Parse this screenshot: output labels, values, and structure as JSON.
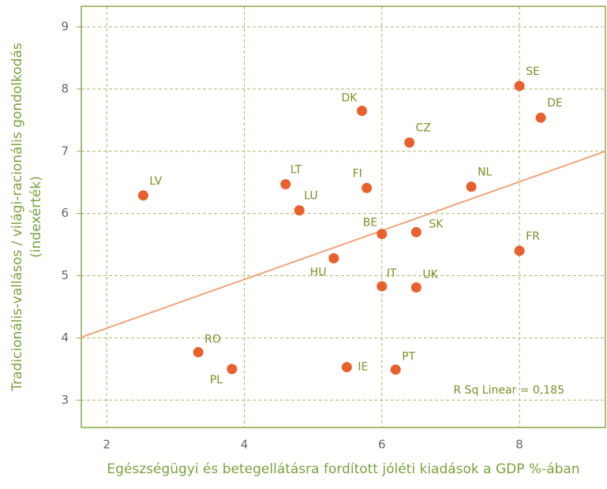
{
  "chart_data": {
    "type": "scatter",
    "xlabel": "Egészségügyi és betegellátásra fordított jóléti kiadások a GDP %-ában",
    "ylabel": [
      "Tradicionális-vallásos / világi-racionális gondolkodás",
      "(indexérték)"
    ],
    "annotation": "R Sq Linear = 0,185",
    "points": [
      "LV",
      "RO",
      "PL",
      "IE",
      "PT",
      "HU",
      "IT",
      "UK",
      "BE",
      "SK",
      "FR",
      "NL",
      "FI",
      "LU",
      "LT",
      "DK",
      "CZ",
      "SE",
      "DE"
    ],
    "x": [
      2.53,
      3.33,
      3.82,
      5.49,
      6.2,
      5.3,
      6.0,
      6.5,
      6.0,
      6.5,
      8.0,
      7.3,
      5.78,
      4.8,
      4.6,
      5.71,
      6.4,
      8.0,
      8.31
    ],
    "y": [
      6.29,
      3.77,
      3.5,
      3.53,
      3.49,
      5.28,
      4.83,
      4.81,
      5.67,
      5.7,
      5.4,
      6.43,
      6.41,
      6.05,
      6.47,
      7.65,
      7.14,
      8.05,
      7.54
    ],
    "color": "#e8602c",
    "fit_line": {
      "x": [
        1.63,
        9.25
      ],
      "y": [
        4.01,
        7.0
      ],
      "color": "#f2a57a"
    },
    "xlim": [
      1.63,
      9.25
    ],
    "ylim": [
      2.56,
      9.33
    ],
    "xticks": [
      2,
      4,
      6,
      8
    ],
    "yticks": [
      3,
      4,
      5,
      6,
      7,
      8,
      9
    ],
    "grid": true
  }
}
